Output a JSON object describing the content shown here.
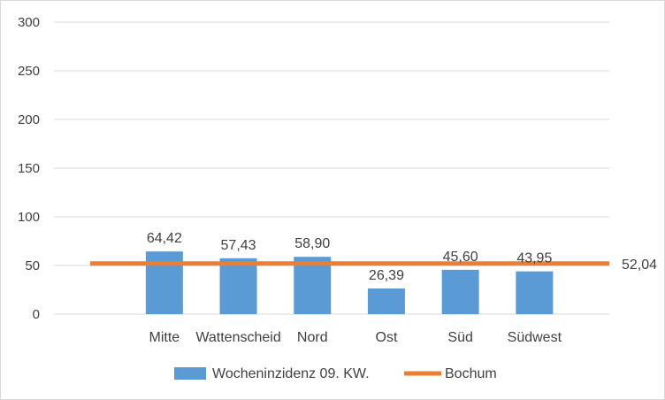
{
  "chart_data": {
    "type": "bar",
    "categories": [
      "Mitte",
      "Wattenscheid",
      "Nord",
      "Ost",
      "Süd",
      "Südwest"
    ],
    "series": [
      {
        "name": "Wocheninzidenz 09. KW.",
        "type": "bar",
        "color": "#5b9bd5",
        "values": [
          64.42,
          57.43,
          58.9,
          26.39,
          45.6,
          43.95
        ],
        "labels": [
          "64,42",
          "57,43",
          "58,90",
          "26,39",
          "45,60",
          "43,95"
        ]
      },
      {
        "name": "Bochum",
        "type": "line",
        "color": "#ed7d31",
        "value": 52.04,
        "label": "52,04"
      }
    ],
    "ylim": [
      0,
      300
    ],
    "yticks": [
      0,
      50,
      100,
      150,
      200,
      250,
      300
    ],
    "grid": true,
    "legend": "bottom"
  }
}
